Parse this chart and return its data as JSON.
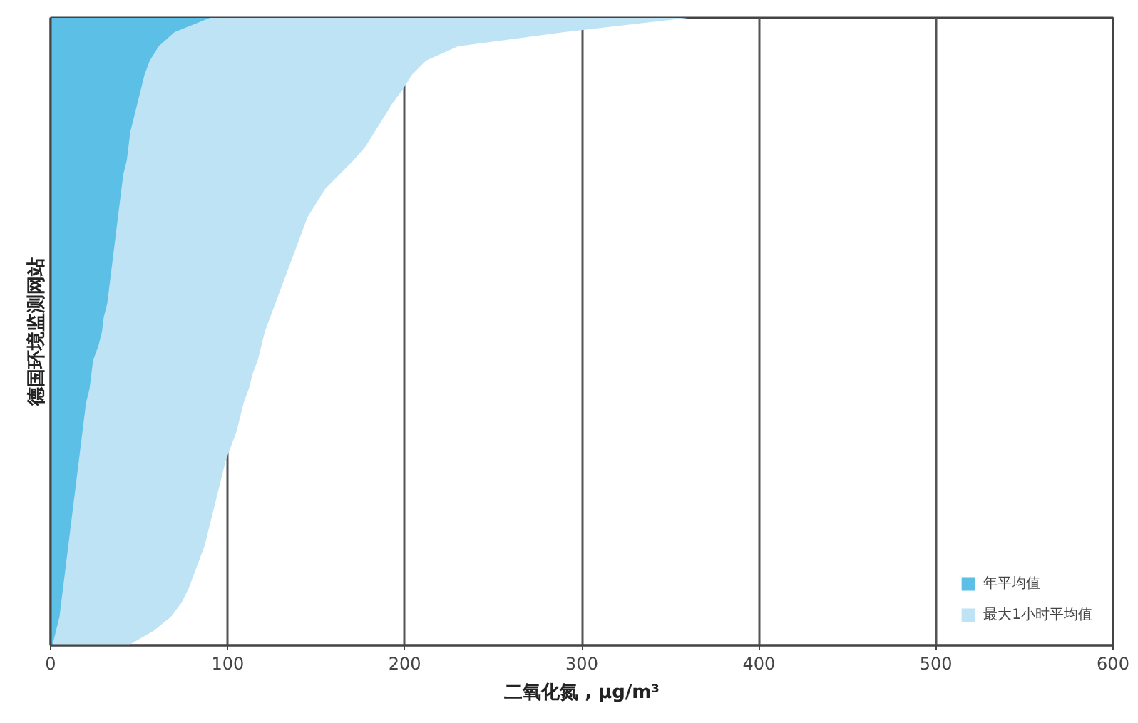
{
  "chart_data": {
    "type": "area",
    "orientation": "horizontal",
    "xlabel": "二氧化氮 , μg/m³",
    "ylabel": "德国环境监测网站",
    "categories": [
      null,
      null,
      null,
      null,
      null,
      null,
      null,
      null,
      null,
      null,
      null,
      null,
      null,
      null,
      null,
      null,
      null,
      null,
      null,
      null,
      null,
      null,
      null,
      null,
      null,
      null,
      null,
      null,
      null,
      null,
      null,
      null,
      null,
      null,
      null,
      null,
      null,
      null,
      null,
      null,
      null,
      null,
      null,
      null,
      null
    ],
    "series": [
      {
        "name": "年平均值",
        "color": "#5bbfe6",
        "values": [
          90,
          70,
          61,
          56,
          53,
          51,
          49,
          47,
          45,
          44,
          43,
          41,
          40,
          39,
          38,
          37,
          36,
          35,
          34,
          33,
          32,
          30,
          29,
          27,
          24,
          23,
          22,
          20,
          19,
          18,
          17,
          16,
          15,
          14,
          13,
          12,
          11,
          10,
          9,
          8,
          7,
          6,
          5,
          3,
          1
        ]
      },
      {
        "name": "最大1小时平均值",
        "color": "#bde3f5",
        "values": [
          360,
          290,
          230,
          212,
          204,
          199,
          193,
          188,
          183,
          178,
          171,
          163,
          155,
          150,
          145,
          142,
          139,
          136,
          133,
          130,
          127,
          124,
          121,
          119,
          117,
          114,
          112,
          109,
          107,
          105,
          102,
          99,
          97,
          95,
          93,
          91,
          89,
          87,
          84,
          81,
          78,
          74,
          68,
          58,
          44
        ]
      }
    ],
    "xlim": [
      0,
      600
    ],
    "xticks": [
      0,
      100,
      200,
      300,
      400,
      500,
      600
    ],
    "grid": "x",
    "legend": "bottom right",
    "tick_labels": "x"
  }
}
